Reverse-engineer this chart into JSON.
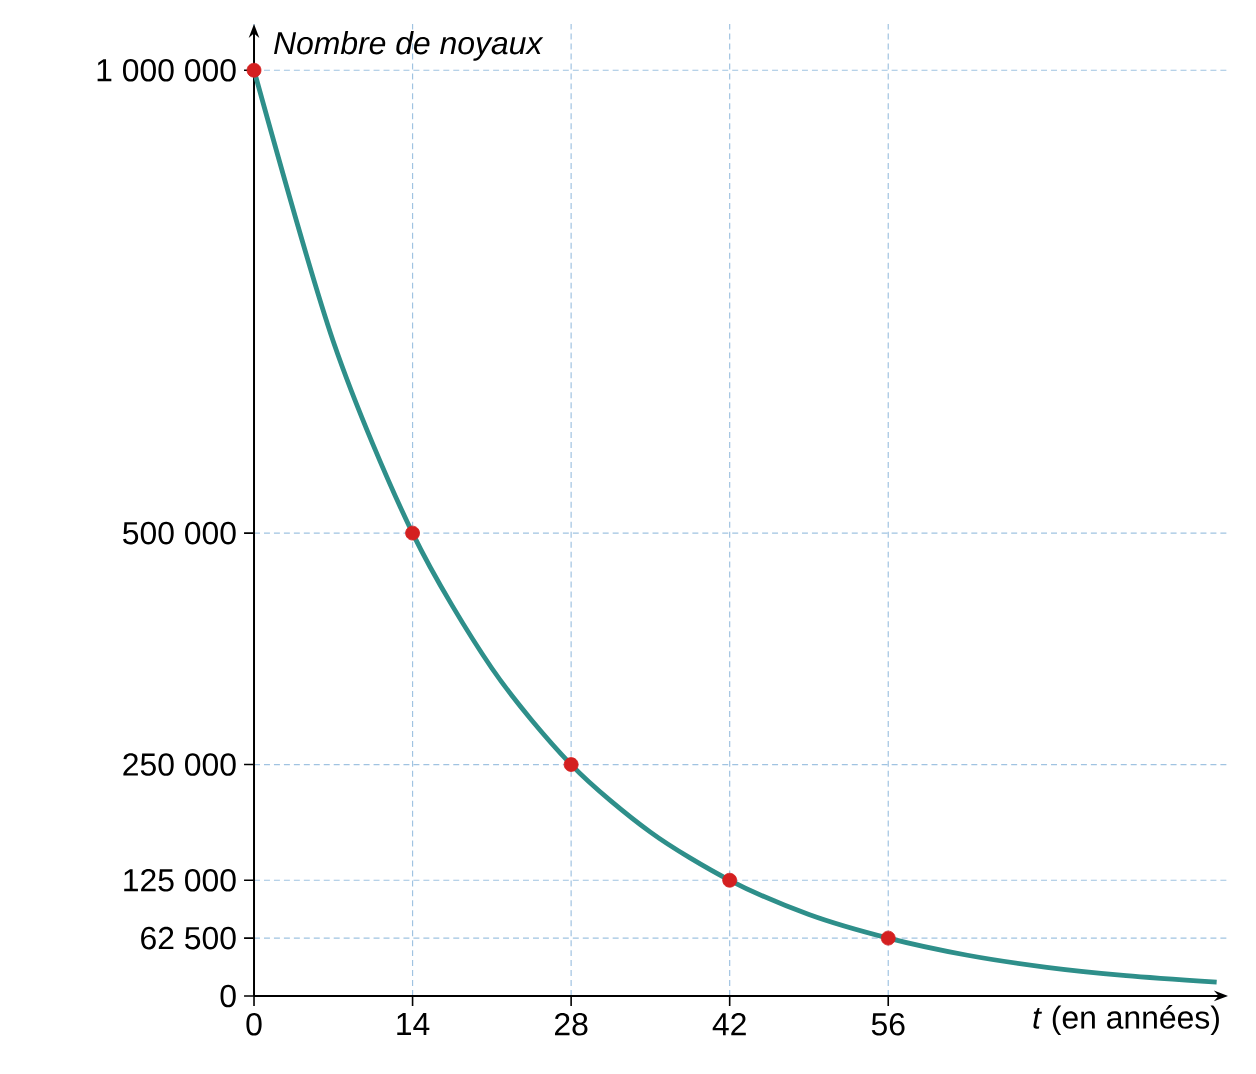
{
  "chart_data": {
    "type": "line",
    "xlabel": "*t* (en années)",
    "ylabel": "Nombre de noyaux",
    "xlim": [
      0,
      86
    ],
    "ylim": [
      0,
      1050000
    ],
    "xticks": [
      0,
      14,
      28,
      42,
      56
    ],
    "yticks": [
      0,
      {
        "value": 62500,
        "label": "62 500"
      },
      {
        "value": 125000,
        "label": "125 000"
      },
      {
        "value": 250000,
        "label": "250 000"
      },
      {
        "value": 500000,
        "label": "500 000"
      },
      {
        "value": 1000000,
        "label": "1 000 000"
      }
    ],
    "grid": true,
    "series": [
      {
        "color": "#2e8f8a",
        "marker": "none",
        "line_style": "solid",
        "x": [
          0,
          7,
          14,
          21,
          28,
          35,
          42,
          49,
          56,
          63,
          70,
          77,
          85
        ],
        "values": [
          1000000,
          707000,
          500000,
          354000,
          250000,
          177000,
          125000,
          88000,
          62500,
          44000,
          31000,
          22000,
          15000
        ]
      },
      {
        "type": "scatter",
        "color": "#d42020",
        "marker": "circle",
        "x": [
          0,
          14,
          28,
          42,
          56
        ],
        "values": [
          1000000,
          500000,
          250000,
          125000,
          62500
        ]
      }
    ]
  }
}
